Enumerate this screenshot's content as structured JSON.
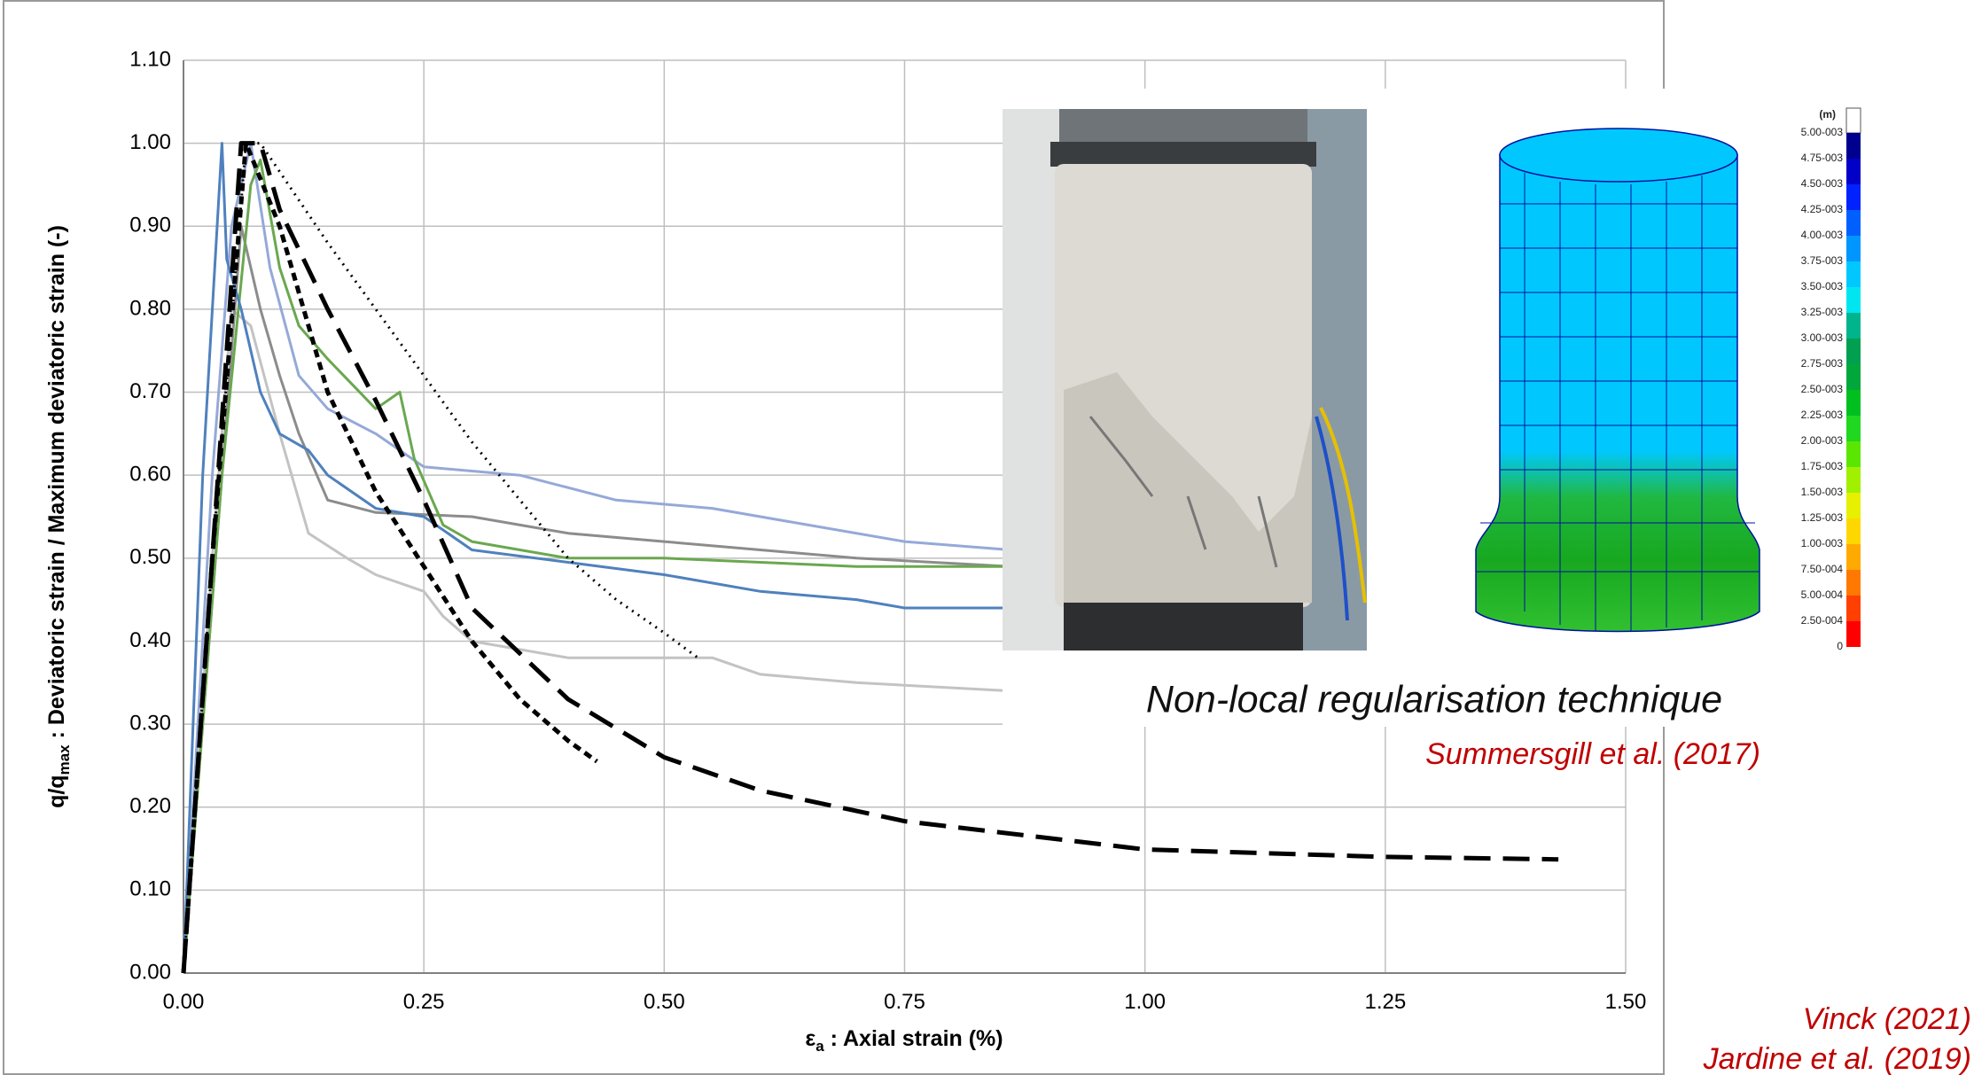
{
  "chart_data": {
    "type": "line",
    "xlabel_parts": [
      "ε",
      "a",
      " : Axial strain (%)"
    ],
    "ylabel_parts": [
      "q/q",
      "max",
      " : Deviatoric strain / Maximum deviatoric strain (-)"
    ],
    "xlim": [
      0,
      1.5
    ],
    "xticks": [
      {
        "value": 0,
        "label": "0.00"
      },
      {
        "value": 0.25,
        "label": "0.25"
      },
      {
        "value": 0.5,
        "label": "0.50"
      },
      {
        "value": 0.75,
        "label": "0.75"
      },
      {
        "value": 1,
        "label": "1.00"
      },
      {
        "value": 1.25,
        "label": "1.25"
      },
      {
        "value": 1.5,
        "label": "1.50"
      }
    ],
    "ylim": [
      0,
      1.1
    ],
    "yticks": [
      {
        "value": 0,
        "label": "0.00"
      },
      {
        "value": 0.1,
        "label": "0.10"
      },
      {
        "value": 0.2,
        "label": "0.20"
      },
      {
        "value": 0.3,
        "label": "0.30"
      },
      {
        "value": 0.4,
        "label": "0.40"
      },
      {
        "value": 0.5,
        "label": "0.50"
      },
      {
        "value": 0.6,
        "label": "0.60"
      },
      {
        "value": 0.7,
        "label": "0.70"
      },
      {
        "value": 0.8,
        "label": "0.80"
      },
      {
        "value": 0.9,
        "label": "0.90"
      },
      {
        "value": 1,
        "label": "1.00"
      },
      {
        "value": 1.1,
        "label": "1.10"
      }
    ],
    "grid": true,
    "series": [
      {
        "color": "#c3c3c3",
        "style": "solid",
        "x": [
          0,
          0.03,
          0.05,
          0.07,
          0.1,
          0.13,
          0.17,
          0.2,
          0.25,
          0.27,
          0.3,
          0.4,
          0.5,
          0.55,
          0.6,
          0.7,
          0.86
        ],
        "values": [
          0,
          0.5,
          0.8,
          0.78,
          0.65,
          0.53,
          0.5,
          0.48,
          0.46,
          0.43,
          0.4,
          0.38,
          0.38,
          0.38,
          0.36,
          0.35,
          0.34
        ]
      },
      {
        "color": "#8c8c8c",
        "style": "solid",
        "x": [
          0,
          0.04,
          0.06,
          0.08,
          0.1,
          0.12,
          0.15,
          0.2,
          0.3,
          0.4,
          0.5,
          0.6,
          0.7,
          0.86
        ],
        "values": [
          0,
          0.6,
          0.9,
          0.8,
          0.72,
          0.65,
          0.57,
          0.555,
          0.55,
          0.53,
          0.52,
          0.51,
          0.5,
          0.49
        ]
      },
      {
        "color": "#95a9d8",
        "style": "solid",
        "x": [
          0,
          0.03,
          0.05,
          0.07,
          0.09,
          0.12,
          0.15,
          0.2,
          0.25,
          0.35,
          0.45,
          0.55,
          0.65,
          0.75,
          0.86
        ],
        "values": [
          0,
          0.6,
          0.9,
          1.0,
          0.85,
          0.72,
          0.68,
          0.65,
          0.61,
          0.6,
          0.57,
          0.56,
          0.54,
          0.52,
          0.51
        ]
      },
      {
        "color": "#6aa84f",
        "style": "solid",
        "x": [
          0,
          0.04,
          0.07,
          0.08,
          0.1,
          0.12,
          0.15,
          0.2,
          0.225,
          0.24,
          0.27,
          0.3,
          0.35,
          0.4,
          0.5,
          0.6,
          0.7,
          0.86
        ],
        "values": [
          0,
          0.6,
          0.95,
          0.98,
          0.85,
          0.78,
          0.74,
          0.68,
          0.7,
          0.62,
          0.54,
          0.52,
          0.51,
          0.5,
          0.5,
          0.495,
          0.49,
          0.49
        ]
      },
      {
        "color": "#4f81bd",
        "style": "solid",
        "x": [
          0,
          0.02,
          0.04,
          0.045,
          0.06,
          0.08,
          0.1,
          0.13,
          0.15,
          0.2,
          0.25,
          0.3,
          0.4,
          0.5,
          0.6,
          0.7,
          0.75,
          0.86
        ],
        "values": [
          0,
          0.6,
          1.0,
          0.86,
          0.8,
          0.7,
          0.65,
          0.63,
          0.6,
          0.56,
          0.55,
          0.51,
          0.495,
          0.48,
          0.46,
          0.45,
          0.44,
          0.44
        ]
      },
      {
        "color": "#000000",
        "style": "dotted",
        "x": [
          0,
          0.03,
          0.065,
          0.08,
          0.15,
          0.2,
          0.25,
          0.3,
          0.35,
          0.4,
          0.45,
          0.5,
          0.535
        ],
        "values": [
          0,
          0.5,
          1.0,
          1.0,
          0.88,
          0.8,
          0.72,
          0.64,
          0.57,
          0.5,
          0.45,
          0.41,
          0.38
        ]
      },
      {
        "color": "#000000",
        "style": "short",
        "x": [
          0,
          0.03,
          0.065,
          0.1,
          0.15,
          0.2,
          0.25,
          0.3,
          0.35,
          0.4,
          0.43
        ],
        "values": [
          0,
          0.5,
          1.0,
          0.9,
          0.7,
          0.58,
          0.49,
          0.4,
          0.33,
          0.28,
          0.255
        ]
      },
      {
        "color": "#000000",
        "style": "long",
        "x": [
          0,
          0.03,
          0.06,
          0.08,
          0.1,
          0.15,
          0.2,
          0.25,
          0.3,
          0.4,
          0.5,
          0.6,
          0.75,
          1.0,
          1.25,
          1.43
        ],
        "values": [
          0,
          0.5,
          1.0,
          1.0,
          0.92,
          0.8,
          0.69,
          0.57,
          0.44,
          0.33,
          0.26,
          0.22,
          0.183,
          0.149,
          0.14,
          0.137
        ]
      }
    ],
    "annotations": [
      "Non-local regularisation technique",
      "Summersgill et al. (2017)",
      "Vinck (2021)",
      "Jardine et al. (2019)"
    ],
    "colorbar": {
      "unit": "(m)",
      "labels": [
        "5.00-003",
        "4.75-003",
        "4.50-003",
        "4.25-003",
        "4.00-003",
        "3.75-003",
        "3.50-003",
        "3.25-003",
        "3.00-003",
        "2.75-003",
        "2.50-003",
        "2.25-003",
        "2.00-003",
        "1.75-003",
        "1.50-003",
        "1.25-003",
        "1.00-003",
        "7.50-004",
        "5.00-004",
        "2.50-004",
        "0"
      ],
      "colors": [
        "#00008f",
        "#0000c8",
        "#0022ff",
        "#0060ff",
        "#0096ff",
        "#00c8ff",
        "#00e6f0",
        "#00b48c",
        "#00a050",
        "#00a83c",
        "#00c020",
        "#20d820",
        "#5ae600",
        "#a0f000",
        "#e6f000",
        "#ffd700",
        "#ffaa00",
        "#ff7800",
        "#ff4000",
        "#ff0000"
      ]
    }
  }
}
